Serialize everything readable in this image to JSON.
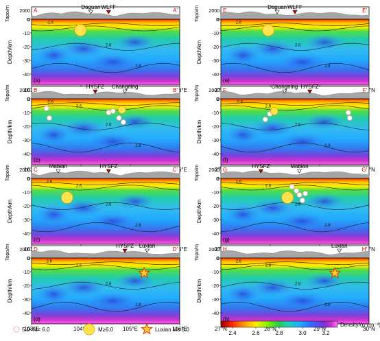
{
  "panels": [
    {
      "id": "a",
      "start": "A",
      "end": "A′",
      "ticks": [
        "103°E",
        "104°E",
        "105°E",
        "106°E"
      ],
      "markers": [
        {
          "label": "Daguan",
          "t": 0.4,
          "fault": false
        },
        {
          "label": "WLFF",
          "t": 0.52,
          "fault": true
        }
      ],
      "contours": [
        "-2.6",
        "2.6",
        "2.8",
        "2.8"
      ],
      "quakes": [
        {
          "type": "large",
          "t": 0.33,
          "depth": -8
        }
      ]
    },
    {
      "id": "e",
      "start": "E",
      "end": "E′",
      "ticks": [
        "27°N",
        "28°N",
        "29°N",
        "30°N"
      ],
      "markers": [
        {
          "label": "Daguan",
          "t": 0.38,
          "fault": false
        },
        {
          "label": "WLFF",
          "t": 0.5,
          "fault": true
        }
      ],
      "contours": [
        "2.6",
        "2.6",
        "2.8",
        "2.8"
      ],
      "quakes": [
        {
          "type": "large",
          "t": 0.32,
          "depth": -8
        }
      ]
    },
    {
      "id": "b",
      "start": "B",
      "end": "B′",
      "ticks": [
        "103°E",
        "104°E",
        "105°E",
        "106°E"
      ],
      "markers": [
        {
          "label": "HYSFZ",
          "t": 0.43,
          "fault": true
        },
        {
          "label": "Changning",
          "t": 0.63,
          "fault": false
        }
      ],
      "contours": [
        "-2.6",
        "2.6",
        "2.8",
        "2.8"
      ],
      "quakes": [
        {
          "type": "small",
          "t": 0.1,
          "depth": -7
        },
        {
          "type": "small",
          "t": 0.12,
          "depth": -14
        },
        {
          "type": "small",
          "t": 0.52,
          "depth": -10
        },
        {
          "type": "small",
          "t": 0.55,
          "depth": -9
        },
        {
          "type": "small",
          "t": 0.59,
          "depth": -14
        },
        {
          "type": "medium",
          "t": 0.61,
          "depth": -8
        },
        {
          "type": "small",
          "t": 0.62,
          "depth": -17
        }
      ]
    },
    {
      "id": "f",
      "start": "F",
      "end": "F′",
      "ticks": [
        "27°N",
        "28°N",
        "29°N",
        "30°N"
      ],
      "markers": [
        {
          "label": "Changning",
          "t": 0.43,
          "fault": false
        },
        {
          "label": "HYSFZ",
          "t": 0.6,
          "fault": true
        }
      ],
      "contours": [
        "-2.6",
        "2.6",
        "2.8",
        "2.8"
      ],
      "quakes": [
        {
          "type": "small",
          "t": 0.3,
          "depth": -15
        },
        {
          "type": "small",
          "t": 0.33,
          "depth": -11
        },
        {
          "type": "medium",
          "t": 0.36,
          "depth": -9
        },
        {
          "type": "small",
          "t": 0.86,
          "depth": -10
        },
        {
          "type": "small",
          "t": 0.87,
          "depth": -14
        }
      ]
    },
    {
      "id": "c",
      "start": "C",
      "end": "C′",
      "ticks": [
        "103°E",
        "104°E",
        "105°E",
        "106°E"
      ],
      "markers": [
        {
          "label": "Mabian",
          "t": 0.18,
          "fault": false
        },
        {
          "label": "HYSFZ",
          "t": 0.52,
          "fault": true
        }
      ],
      "contours": [
        "2.6",
        "2.6",
        "2.8",
        "2.8"
      ],
      "quakes": [
        {
          "type": "large",
          "t": 0.24,
          "depth": -14
        }
      ]
    },
    {
      "id": "g",
      "start": "G",
      "end": "G′",
      "ticks": [
        "27°N",
        "28°N",
        "29°N",
        "30°N"
      ],
      "markers": [
        {
          "label": "HYSFZ",
          "t": 0.27,
          "fault": true
        },
        {
          "label": "Mabian",
          "t": 0.53,
          "fault": false
        }
      ],
      "contours": [
        "2.6",
        "2.6",
        "2.8",
        "2.8"
      ],
      "quakes": [
        {
          "type": "large",
          "t": 0.45,
          "depth": -14
        },
        {
          "type": "small",
          "t": 0.48,
          "depth": -6
        },
        {
          "type": "small",
          "t": 0.51,
          "depth": -9
        },
        {
          "type": "small",
          "t": 0.53,
          "depth": -12
        },
        {
          "type": "small",
          "t": 0.55,
          "depth": -16
        },
        {
          "type": "small",
          "t": 0.57,
          "depth": -11
        }
      ]
    },
    {
      "id": "d",
      "start": "D",
      "end": "D′",
      "ticks": [
        "103°E",
        "104°E",
        "105°E",
        "106°E"
      ],
      "markers": [
        {
          "label": "HYSFZ",
          "t": 0.63,
          "fault": true
        },
        {
          "label": "Luxian",
          "t": 0.78,
          "fault": false
        }
      ],
      "contours": [
        "2.6",
        "2.6",
        "2.8",
        "2.8"
      ],
      "quakes": [
        {
          "type": "star",
          "t": 0.76,
          "depth": -11
        }
      ]
    },
    {
      "id": "h",
      "start": "H",
      "end": "H′",
      "ticks": [
        "27°N",
        "28°N",
        "29°N",
        "30°N"
      ],
      "markers": [
        {
          "label": "Luxian",
          "t": 0.8,
          "fault": false
        }
      ],
      "contours": [
        "2.6",
        "2.6",
        "2.8",
        "2.8"
      ],
      "quakes": [
        {
          "type": "star",
          "t": 0.77,
          "depth": -11
        }
      ]
    }
  ],
  "axes": {
    "topo_label": "Topo/m",
    "depth_label": "Depth/km",
    "topo_ticks": [
      "2000",
      "0"
    ],
    "depth_ticks": [
      "0",
      "-10",
      "-20",
      "-30",
      "-40"
    ],
    "topo_range": [
      0,
      2800
    ],
    "depth_range": [
      -48,
      0
    ]
  },
  "legend": {
    "small_label": "5.0<M< 6.0",
    "large_label": "M≥6.0",
    "star_label": "Luxian Ms 6.0",
    "density_label": "Density/(g·cm⁻³)",
    "density_ticks": [
      "2.4",
      "2.6",
      "2.8",
      "3.0",
      "3.2"
    ],
    "density_range": [
      2.3,
      3.3
    ],
    "colors": [
      "#8b0000",
      "#ff3000",
      "#ff9900",
      "#ffee00",
      "#99ee00",
      "#22cc44",
      "#22ccbb",
      "#22aaff",
      "#3366ff",
      "#6633dd",
      "#cc33cc",
      "#ff66ff"
    ]
  }
}
